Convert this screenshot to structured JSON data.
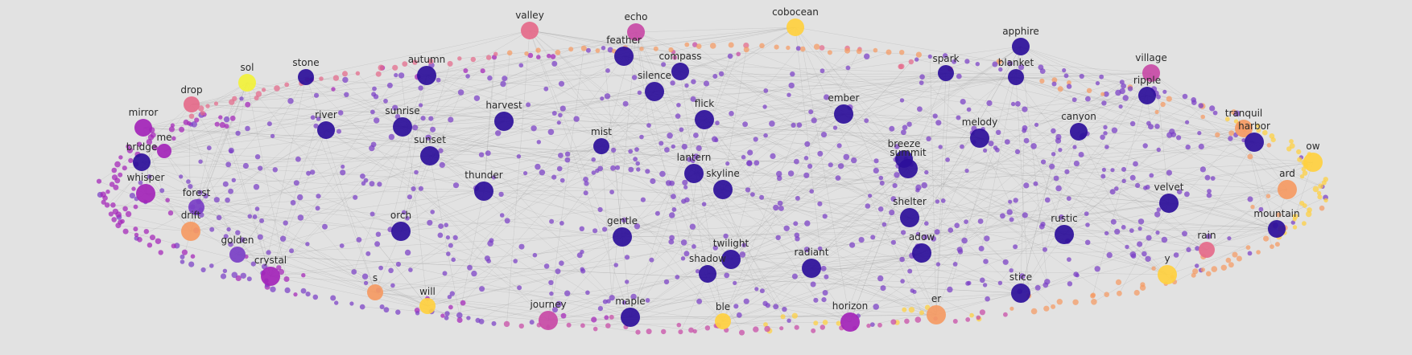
{
  "colors": {
    "background": "#e2e2e2",
    "edge": "#9e9e9e",
    "node_colors": [
      "#2d0f9a",
      "#7a3fc6",
      "#a324b8",
      "#c84aa6",
      "#e56a8a",
      "#f59a63",
      "#ffd03f",
      "#f2f23a"
    ]
  },
  "graph": {
    "labels": [
      {
        "text": "valley"
      },
      {
        "text": "echo"
      },
      {
        "text": "cobocean"
      },
      {
        "text": "apphire"
      },
      {
        "text": "feather"
      },
      {
        "text": "compass"
      },
      {
        "text": "spark"
      },
      {
        "text": "blanket"
      },
      {
        "text": "village"
      },
      {
        "text": "sol"
      },
      {
        "text": "stone"
      },
      {
        "text": "autumn"
      },
      {
        "text": "silence"
      },
      {
        "text": "ripple"
      },
      {
        "text": "drop"
      },
      {
        "text": "flick"
      },
      {
        "text": "ember"
      },
      {
        "text": "tranquil"
      },
      {
        "text": "mirror"
      },
      {
        "text": "river"
      },
      {
        "text": "sunrise"
      },
      {
        "text": "harvest"
      },
      {
        "text": "melody"
      },
      {
        "text": "canyon"
      },
      {
        "text": "harbor"
      },
      {
        "text": "bridge"
      },
      {
        "text": "me"
      },
      {
        "text": "mist"
      },
      {
        "text": "breeze"
      },
      {
        "text": "summit"
      },
      {
        "text": "ow"
      },
      {
        "text": "sunset"
      },
      {
        "text": "lantern"
      },
      {
        "text": "skyline"
      },
      {
        "text": "whisper"
      },
      {
        "text": "forest"
      },
      {
        "text": "thunder"
      },
      {
        "text": "ard"
      },
      {
        "text": "drift"
      },
      {
        "text": "orch"
      },
      {
        "text": "shelter"
      },
      {
        "text": "velvet"
      },
      {
        "text": "mountain"
      },
      {
        "text": "golden"
      },
      {
        "text": "gentle"
      },
      {
        "text": "adow"
      },
      {
        "text": "rustic"
      },
      {
        "text": "rain"
      },
      {
        "text": "crystal"
      },
      {
        "text": "twilight"
      },
      {
        "text": "radiant"
      },
      {
        "text": "shadow"
      },
      {
        "text": "y"
      },
      {
        "text": "s"
      },
      {
        "text": "will"
      },
      {
        "text": "stice"
      },
      {
        "text": "journey"
      },
      {
        "text": "maple"
      },
      {
        "text": "ble"
      },
      {
        "text": "horizon"
      },
      {
        "text": "er"
      }
    ]
  }
}
